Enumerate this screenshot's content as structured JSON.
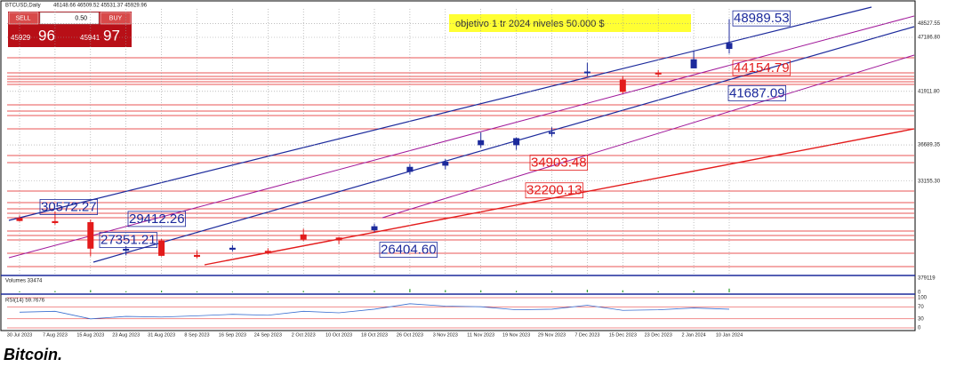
{
  "toolbar": {
    "symbol": "BTCUSD,Daily",
    "ohlc": "46148.66 46509.52 45531.37 45929.96"
  },
  "trade_panel": {
    "sell": "SELL",
    "lot": "0.50",
    "buy": "BUY",
    "bid_main": "45929",
    "bid_pips": "96",
    "ask_main": "45941",
    "ask_pips": "97"
  },
  "caption": "Bitcoin.",
  "chart_data": {
    "type": "candlestick",
    "categories": [
      "30 Jul 2023",
      "7 Aug 2023",
      "15 Aug 2023",
      "23 Aug 2023",
      "31 Aug 2023",
      "8 Sep 2023",
      "16 Sep 2023",
      "24 Sep 2023",
      "2 Oct 2023",
      "10 Oct 2023",
      "18 Oct 2023",
      "26 Oct 2023",
      "3 Nov 2023",
      "11 Nov 2023",
      "19 Nov 2023",
      "29 Nov 2023",
      "7 Dec 2023",
      "15 Dec 2023",
      "23 Dec 2023",
      "2 Jan 2024",
      "10 Jan 2024"
    ],
    "open": [
      29500,
      29200,
      29100,
      26400,
      27300,
      25900,
      26500,
      26300,
      27900,
      27600,
      28400,
      34100,
      34700,
      36700,
      36700,
      37800,
      43800,
      43000,
      43700,
      44200,
      46100
    ],
    "high": [
      29800,
      30200,
      29400,
      26800,
      27500,
      26400,
      26900,
      26600,
      28500,
      27700,
      29000,
      34800,
      35300,
      37900,
      37400,
      38400,
      44700,
      43400,
      44000,
      45900,
      48970
    ],
    "low": [
      29200,
      28900,
      25800,
      25900,
      25800,
      25600,
      26300,
      26000,
      27300,
      27000,
      28200,
      33800,
      34300,
      36400,
      36200,
      37500,
      43400,
      41700,
      43300,
      44200,
      45600
    ],
    "close": [
      29300,
      29100,
      26600,
      26500,
      25900,
      25800,
      26600,
      26200,
      27500,
      27400,
      28700,
      34500,
      35000,
      37100,
      37300,
      37900,
      43800,
      41900,
      43600,
      45000,
      46600
    ],
    "up_color": "#1c2a9c",
    "down_color": "#e31b1b",
    "ylim": [
      24112,
      49963
    ],
    "yticks": [
      {
        "value": 48527.55,
        "label": "48527.55"
      },
      {
        "value": 47186.8,
        "label": "47186.80"
      },
      {
        "value": 41911.8,
        "label": "41911.80"
      },
      36689.35,
      {
        "value": 33155.3,
        "label": "33155.30"
      }
    ],
    "grid": true,
    "annotation_box": "objetivo 1 tr 2024  niveles 50.000 $",
    "annotations": [
      {
        "value": 48989.53,
        "color": "#1c2a9c"
      },
      {
        "value": 44154.79,
        "color": "#e31b1b"
      },
      {
        "value": 41687.09,
        "color": "#1c2a9c"
      },
      {
        "value": 34903.48,
        "color": "#e31b1b"
      },
      {
        "value": 32200.13,
        "color": "#e31b1b"
      },
      {
        "value": 30572.27,
        "color": "#1c2a9c"
      },
      {
        "value": 29412.26,
        "color": "#1c2a9c"
      },
      {
        "value": 27351.21,
        "color": "#1c2a9c"
      },
      {
        "value": 26404.6,
        "label": "26404.60",
        "color": "#1c2a9c"
      }
    ],
    "volume": {
      "label": "Volumes 33474",
      "values": [
        28000,
        35000,
        60000,
        30000,
        45000,
        25000,
        20000,
        22000,
        40000,
        30000,
        45000,
        90000,
        60000,
        55000,
        40000,
        35000,
        70000,
        55000,
        30000,
        45000,
        100000
      ],
      "ylim": [
        0,
        379119
      ],
      "yticks": [
        379119,
        0
      ],
      "color": "#2e9e2e"
    },
    "rsi": {
      "label": "RSI(14) 59.7676",
      "values": [
        52,
        55,
        30,
        38,
        36,
        40,
        45,
        42,
        55,
        50,
        62,
        80,
        72,
        70,
        60,
        62,
        75,
        58,
        60,
        66,
        62
      ],
      "ylim": [
        0,
        100
      ],
      "yticks": [
        100,
        70,
        30,
        0
      ],
      "color": "#3a6fd0"
    }
  }
}
